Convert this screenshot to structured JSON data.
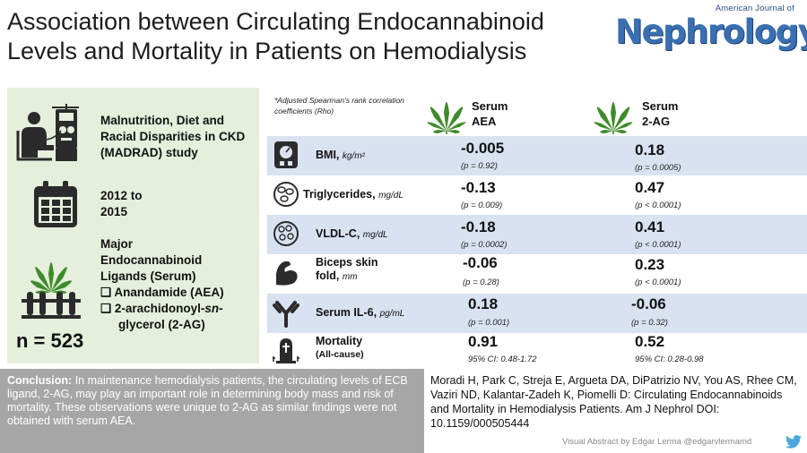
{
  "title": "Association between Circulating Endocannabinoid Levels and Mortality in Patients on Hemodialysis",
  "journal": {
    "prefix": "American Journal of",
    "name": "Nephrology"
  },
  "study": {
    "name_lines": [
      "Malnutrition, Diet and",
      "Racial Disparities in CKD",
      "(MADRAD) study"
    ],
    "period_lines": [
      "2012 to",
      "2015"
    ],
    "ligand_lines": [
      "Major",
      "Endocannabinoid",
      "Ligands (Serum)"
    ],
    "ligand_items": [
      "Anandamide (AEA)",
      "2-arachidonoyl-",
      "glycerol (2-AG)"
    ],
    "ligand_item2_italic": "sn",
    "ligand_item2_tail": "-",
    "sample": "n = 523"
  },
  "table": {
    "footnote": "*Adjusted Spearman’s rank correlation coefficients (Rho)",
    "col_aea": [
      "Serum",
      "AEA"
    ],
    "col_2ag": [
      "Serum",
      "2-AG"
    ],
    "rows": [
      {
        "label": "BMI,",
        "unit": "kg/m²",
        "icon": "scale-icon",
        "aea": "-0.005",
        "aea_sub": "(p = 0.92)",
        "ag": "0.18",
        "ag_sub": "(p = 0.0005)"
      },
      {
        "label": "Triglycerides,",
        "unit": "mg/dL",
        "icon": "blood-cells-icon",
        "aea": "-0.13",
        "aea_sub": "(p = 0.009)",
        "ag": "0.47",
        "ag_sub": "(p < 0.0001)"
      },
      {
        "label": "VLDL-C,",
        "unit": "mg/dL",
        "icon": "lipid-particles-icon",
        "aea": "-0.18",
        "aea_sub": "(p = 0.0002)",
        "ag": "0.41",
        "ag_sub": "(p < 0.0001)"
      },
      {
        "label": "Biceps skin",
        "label2": "fold,",
        "unit": "mm",
        "icon": "arm-muscle-icon",
        "aea": "-0.06",
        "aea_sub": "(p = 0.28)",
        "ag": "0.23",
        "ag_sub": "(p < 0.0001)"
      },
      {
        "label": "Serum IL-6,",
        "unit": "pg/mL",
        "icon": "antibody-icon",
        "aea": "0.18",
        "aea_sub": "(p = 0.001)",
        "ag": "-0.06",
        "ag_sub": "(p = 0.32)"
      },
      {
        "label": "Mortality",
        "label2": "(All-cause)",
        "icon": "tombstone-icon",
        "aea": "0.91",
        "aea_sub": "95% CI: 0.48-1.72",
        "ag": "0.52",
        "ag_sub": "95% CI: 0.28-0.98"
      }
    ]
  },
  "conclusion": {
    "label": "Conclusion:",
    "text": " In maintenance hemodialysis patients, the circulating levels of ECB ligand, 2-AG, may play an important role in determining body mass and risk of mortality. These observations were unique to 2-AG as similar findings were not obtained with serum AEA."
  },
  "citation": "Moradi H, Park C, Streja E, Argueta DA, DiPatrizio NV, You AS, Rhee CM, Vaziri ND, Kalantar-Zadeh K, Piomelli D: Circulating Endocannabinoids and Mortality in Hemodialysis Patients. Am J Nephrol DOI: 10.1159/000505444",
  "credit": "Visual Abstract by Edgar Lerma @edgarvlermamd",
  "colors": {
    "panel_green": "#e5efdc",
    "row_blue": "#d9e2f1",
    "conclusion_gray": "#a6a6a6",
    "leaf_green": "#3f8a2a",
    "logo_blue": "#3a6fb2"
  }
}
